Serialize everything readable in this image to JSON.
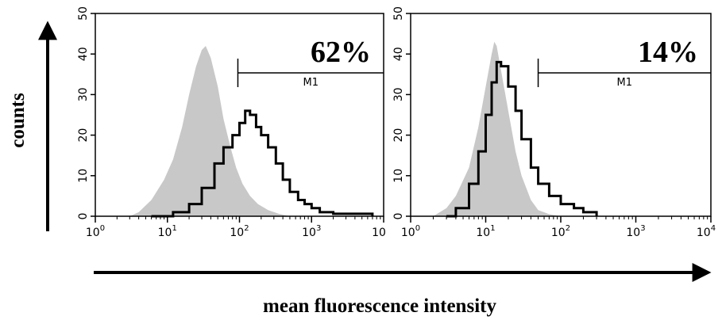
{
  "figure": {
    "y_axis_title": "counts",
    "x_axis_title": "mean fluorescence intensity",
    "colors": {
      "control_fill": "#c8c8c8",
      "sample_line": "#000000",
      "axis": "#000000"
    }
  },
  "chart_data": [
    {
      "type": "area",
      "title": "",
      "xlabel": "",
      "ylabel": "",
      "x_scale": "log",
      "xlim": [
        1,
        10000
      ],
      "ylim": [
        0,
        50
      ],
      "x_tick_labels": [
        "10",
        "10",
        "10",
        "10",
        "10"
      ],
      "x_tick_exponents": [
        "0",
        "1",
        "2",
        "3",
        ""
      ],
      "y_tick_labels": [
        "0",
        "10",
        "20",
        "30",
        "40",
        "50"
      ],
      "gate": {
        "label": "M1",
        "start": 95,
        "end": 10000,
        "percent_label": "62%"
      },
      "series": [
        {
          "role": "control",
          "style": "filled",
          "points": [
            [
              3,
              0
            ],
            [
              4,
              1
            ],
            [
              6,
              4
            ],
            [
              9,
              9
            ],
            [
              12,
              14
            ],
            [
              16,
              22
            ],
            [
              20,
              30
            ],
            [
              25,
              37
            ],
            [
              30,
              41
            ],
            [
              34,
              42
            ],
            [
              40,
              39
            ],
            [
              50,
              32
            ],
            [
              60,
              24
            ],
            [
              75,
              17
            ],
            [
              90,
              12
            ],
            [
              110,
              8
            ],
            [
              140,
              5
            ],
            [
              180,
              3
            ],
            [
              250,
              1.5
            ],
            [
              350,
              0.6
            ],
            [
              500,
              0
            ]
          ]
        },
        {
          "role": "sample",
          "style": "line",
          "points": [
            [
              6,
              0
            ],
            [
              12,
              1
            ],
            [
              20,
              3
            ],
            [
              30,
              7
            ],
            [
              45,
              13
            ],
            [
              60,
              17
            ],
            [
              80,
              20
            ],
            [
              100,
              23
            ],
            [
              120,
              26
            ],
            [
              140,
              25
            ],
            [
              170,
              22
            ],
            [
              200,
              20
            ],
            [
              250,
              17
            ],
            [
              320,
              13
            ],
            [
              400,
              9
            ],
            [
              500,
              6
            ],
            [
              650,
              4
            ],
            [
              800,
              3
            ],
            [
              1000,
              2
            ],
            [
              1300,
              1
            ],
            [
              2000,
              0.6
            ],
            [
              3000,
              0.6
            ],
            [
              5000,
              0.6
            ],
            [
              7000,
              0
            ]
          ]
        }
      ]
    },
    {
      "type": "area",
      "title": "",
      "xlabel": "",
      "ylabel": "",
      "x_scale": "log",
      "xlim": [
        1,
        10000
      ],
      "ylim": [
        0,
        50
      ],
      "x_tick_labels": [
        "10",
        "10",
        "10",
        "10",
        "10"
      ],
      "x_tick_exponents": [
        "0",
        "1",
        "2",
        "3",
        "4"
      ],
      "y_tick_labels": [
        "0",
        "10",
        "20",
        "30",
        "40",
        "50"
      ],
      "gate": {
        "label": "M1",
        "start": 50,
        "end": 10000,
        "percent_label": "14%"
      },
      "series": [
        {
          "role": "control",
          "style": "filled",
          "points": [
            [
              2,
              0
            ],
            [
              3,
              2
            ],
            [
              4,
              5
            ],
            [
              6,
              12
            ],
            [
              8,
              22
            ],
            [
              10,
              32
            ],
            [
              12,
              40
            ],
            [
              13,
              43
            ],
            [
              14,
              42
            ],
            [
              16,
              36
            ],
            [
              20,
              26
            ],
            [
              25,
              16
            ],
            [
              30,
              10
            ],
            [
              40,
              4
            ],
            [
              50,
              1.5
            ],
            [
              70,
              0.5
            ],
            [
              100,
              0
            ]
          ]
        },
        {
          "role": "sample",
          "style": "line",
          "points": [
            [
              3,
              0
            ],
            [
              4,
              2
            ],
            [
              6,
              8
            ],
            [
              8,
              16
            ],
            [
              10,
              25
            ],
            [
              12,
              33
            ],
            [
              14,
              38
            ],
            [
              16,
              37
            ],
            [
              20,
              32
            ],
            [
              25,
              26
            ],
            [
              30,
              19
            ],
            [
              40,
              12
            ],
            [
              50,
              8
            ],
            [
              70,
              5
            ],
            [
              100,
              3
            ],
            [
              150,
              2
            ],
            [
              200,
              1
            ],
            [
              300,
              0
            ]
          ]
        }
      ]
    }
  ]
}
